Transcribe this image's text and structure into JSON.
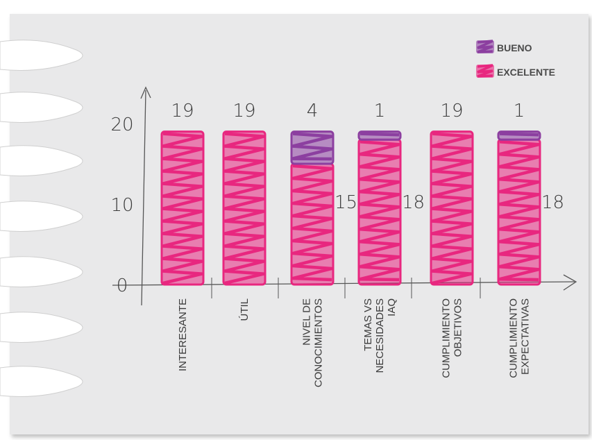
{
  "chart_data": {
    "type": "bar",
    "stacked": true,
    "title": "",
    "xlabel": "",
    "ylabel": "",
    "ylim": [
      0,
      20
    ],
    "yticks": [
      "0",
      "10",
      "20"
    ],
    "grid": false,
    "legend_position": "top-right",
    "categories": [
      [
        "INTERESANTE"
      ],
      [
        "ÚTIL"
      ],
      [
        "NIVEL DE",
        "CONOCIMIENTOS"
      ],
      [
        "TEMAS VS",
        "NECESIDADES",
        "IAQ"
      ],
      [
        "CUMPLIMIENTO",
        "OBJETIVOS"
      ],
      [
        "CUMPLIMIENTO",
        "EXPECTATIVAS"
      ]
    ],
    "series": [
      {
        "name": "EXCELENTE",
        "color": "#e8277f",
        "values": [
          19,
          19,
          15,
          18,
          19,
          18
        ],
        "labels": [
          "19",
          "19",
          "15",
          "18",
          "19",
          "18"
        ]
      },
      {
        "name": "BUENO",
        "color": "#8c3fa0",
        "values": [
          0,
          0,
          4,
          1,
          0,
          1
        ],
        "labels": [
          "",
          "",
          "4",
          "1",
          "",
          "1"
        ]
      }
    ]
  }
}
